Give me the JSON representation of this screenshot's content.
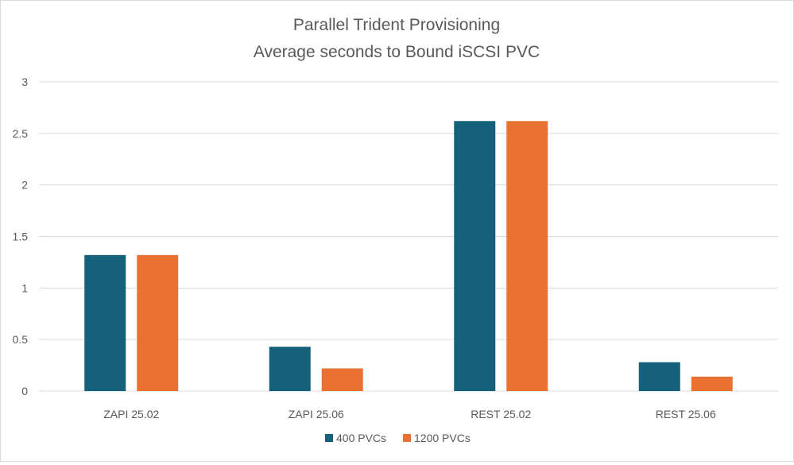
{
  "chart_data": {
    "type": "bar",
    "title": "Parallel Trident Provisioning",
    "subtitle": "Average seconds to Bound iSCSI PVC",
    "xlabel": "",
    "ylabel": "",
    "categories": [
      "ZAPI 25.02",
      "ZAPI 25.06",
      "REST 25.02",
      "REST 25.06"
    ],
    "series": [
      {
        "name": "400 PVCs",
        "color": "#15607a",
        "values": [
          1.32,
          0.43,
          2.62,
          0.28
        ]
      },
      {
        "name": "1200 PVCs",
        "color": "#e97132",
        "values": [
          1.32,
          0.22,
          2.62,
          0.14
        ]
      }
    ],
    "ylim": [
      0,
      3
    ],
    "yticks": [
      "0",
      "0.5",
      "1",
      "1.5",
      "2",
      "2.5",
      "3"
    ],
    "grid": true,
    "legend_position": "bottom"
  }
}
